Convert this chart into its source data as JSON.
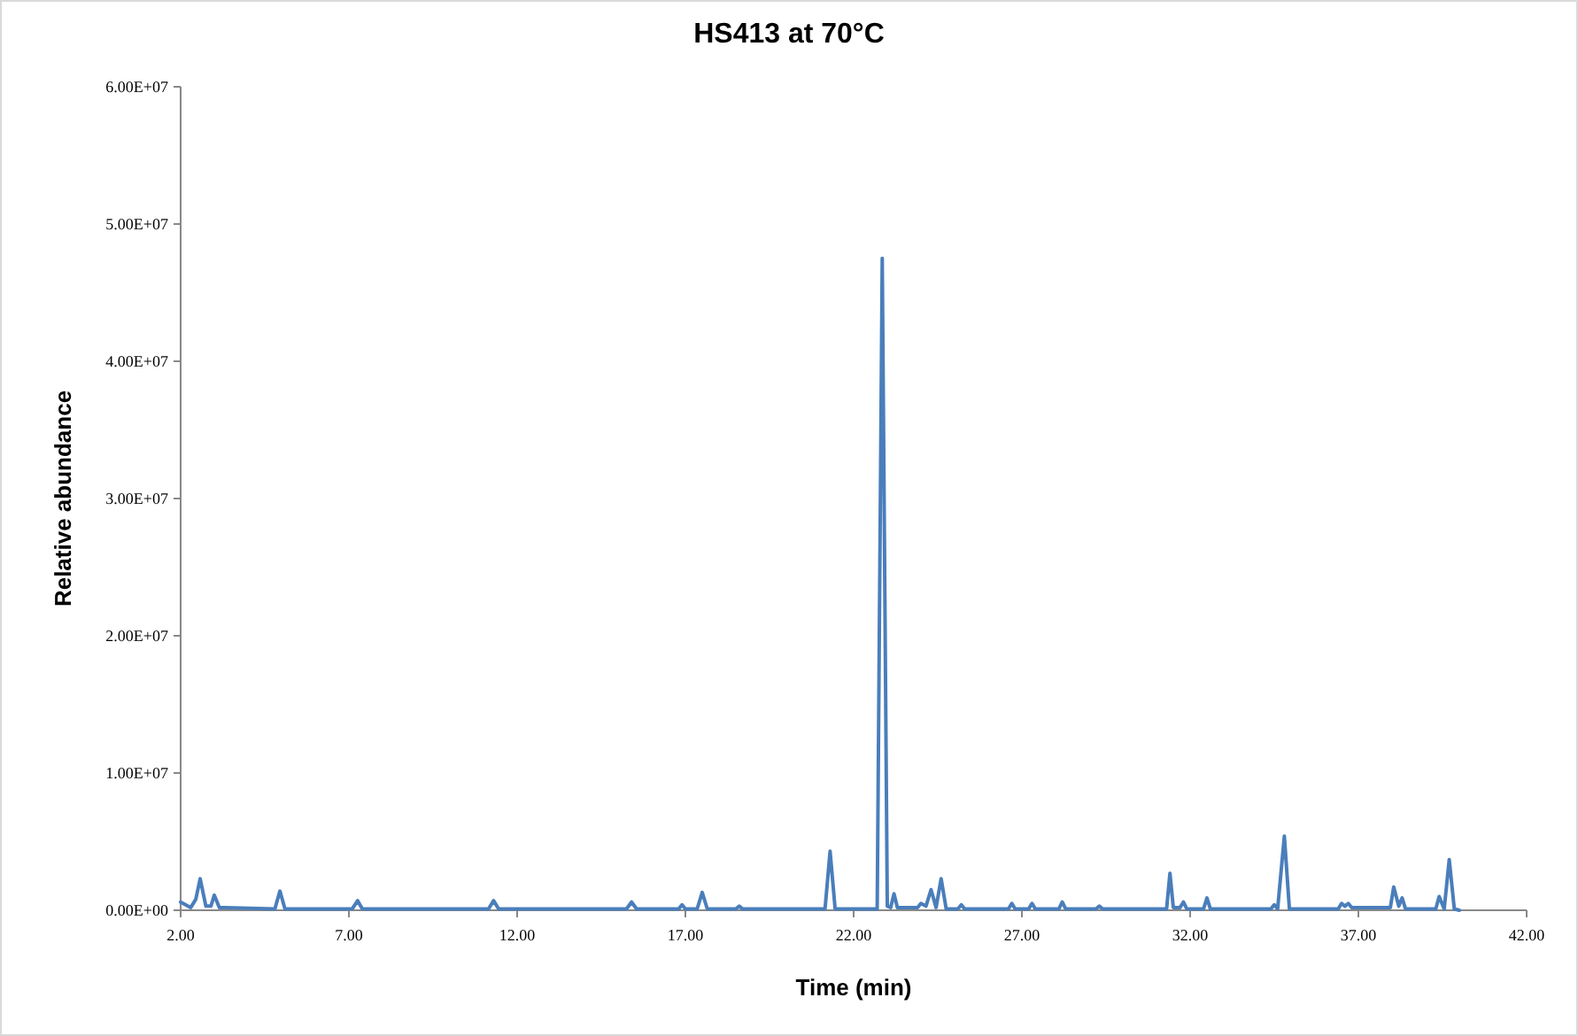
{
  "chart_data": {
    "type": "line",
    "title": "HS413 at 70°C",
    "xlabel": "Time (min)",
    "ylabel": "Relative abundance",
    "xlim": [
      2,
      42
    ],
    "ylim": [
      0,
      60000000
    ],
    "xticks": [
      {
        "value": 2,
        "label": "2.00"
      },
      {
        "value": 7,
        "label": "7.00"
      },
      {
        "value": 12,
        "label": "12.00"
      },
      {
        "value": 17,
        "label": "17.00"
      },
      {
        "value": 22,
        "label": "22.00"
      },
      {
        "value": 27,
        "label": "27.00"
      },
      {
        "value": 32,
        "label": "32.00"
      },
      {
        "value": 37,
        "label": "37.00"
      },
      {
        "value": 42,
        "label": "42.00"
      }
    ],
    "yticks": [
      {
        "value": 0,
        "label": "0.00E+00"
      },
      {
        "value": 10000000,
        "label": "1.00E+07"
      },
      {
        "value": 20000000,
        "label": "2.00E+07"
      },
      {
        "value": 30000000,
        "label": "3.00E+07"
      },
      {
        "value": 40000000,
        "label": "4.00E+07"
      },
      {
        "value": 50000000,
        "label": "5.00E+07"
      },
      {
        "value": 60000000,
        "label": "6.00E+07"
      }
    ],
    "grid": false,
    "marker": "none",
    "line_style": "solid",
    "series": [
      {
        "color": "#4a7ebb",
        "x": [
          2.0,
          2.3,
          2.45,
          2.58,
          2.75,
          2.9,
          3.0,
          3.15,
          4.8,
          4.95,
          5.1,
          7.1,
          7.26,
          7.4,
          11.15,
          11.3,
          11.45,
          15.25,
          15.4,
          15.55,
          16.8,
          16.9,
          17.0,
          17.35,
          17.5,
          17.65,
          18.5,
          18.6,
          18.7,
          21.15,
          21.3,
          21.45,
          22.7,
          22.85,
          23.0,
          23.1,
          23.2,
          23.3,
          23.9,
          24.0,
          24.15,
          24.3,
          24.45,
          24.6,
          24.75,
          25.1,
          25.2,
          25.3,
          26.6,
          26.7,
          26.8,
          27.2,
          27.3,
          27.4,
          28.1,
          28.2,
          28.3,
          29.2,
          29.3,
          29.4,
          31.3,
          31.4,
          31.5,
          31.7,
          31.8,
          31.9,
          32.4,
          32.5,
          32.6,
          34.4,
          34.5,
          34.6,
          34.8,
          34.95,
          36.4,
          36.5,
          36.6,
          36.7,
          36.8,
          37.95,
          38.05,
          38.2,
          38.3,
          38.4,
          39.3,
          39.4,
          39.55,
          39.7,
          39.85,
          40.0
        ],
        "values": [
          600000,
          200000,
          800000,
          2300000,
          300000,
          300000,
          1100000,
          200000,
          100000,
          1400000,
          100000,
          100000,
          700000,
          100000,
          100000,
          700000,
          100000,
          100000,
          600000,
          100000,
          100000,
          400000,
          100000,
          100000,
          1300000,
          100000,
          100000,
          300000,
          100000,
          100000,
          4300000,
          100000,
          100000,
          47500000,
          300000,
          200000,
          1200000,
          200000,
          200000,
          500000,
          300000,
          1500000,
          200000,
          2300000,
          100000,
          100000,
          400000,
          100000,
          100000,
          500000,
          100000,
          100000,
          500000,
          100000,
          100000,
          600000,
          100000,
          100000,
          300000,
          100000,
          100000,
          2700000,
          200000,
          200000,
          600000,
          100000,
          100000,
          900000,
          100000,
          100000,
          400000,
          100000,
          5400000,
          100000,
          100000,
          500000,
          300000,
          500000,
          200000,
          200000,
          1700000,
          300000,
          900000,
          100000,
          100000,
          1000000,
          100000,
          3700000,
          100000,
          0
        ]
      }
    ]
  }
}
